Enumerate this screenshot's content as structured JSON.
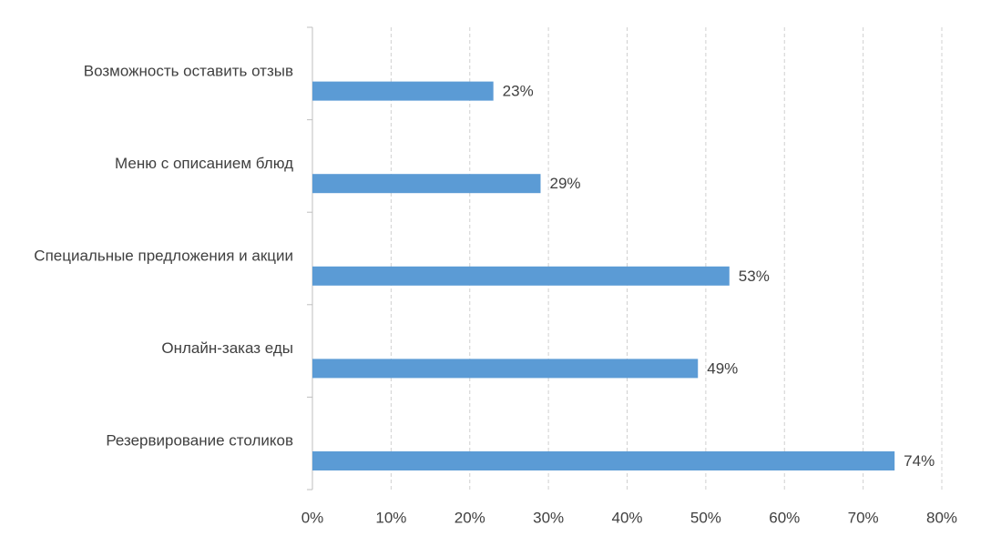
{
  "chart_data": {
    "type": "hbar",
    "categories": [
      "Возможность оставить отзыв",
      "Меню с описанием блюд",
      "Специальные предложения и акции",
      "Онлайн-заказ еды",
      "Резервирование столиков"
    ],
    "values": [
      23,
      29,
      53,
      49,
      74
    ],
    "value_labels": [
      "23%",
      "29%",
      "53%",
      "49%",
      "74%"
    ],
    "color": "#5b9bd5",
    "xlim": [
      0,
      80
    ],
    "xticks": [
      {
        "value": 0,
        "label": "0%"
      },
      {
        "value": 10,
        "label": "10%"
      },
      {
        "value": 20,
        "label": "20%"
      },
      {
        "value": 30,
        "label": "30%"
      },
      {
        "value": 40,
        "label": "40%"
      },
      {
        "value": 50,
        "label": "50%"
      },
      {
        "value": 60,
        "label": "60%"
      },
      {
        "value": 70,
        "label": "70%"
      },
      {
        "value": 80,
        "label": "80%"
      }
    ],
    "grid": true
  }
}
